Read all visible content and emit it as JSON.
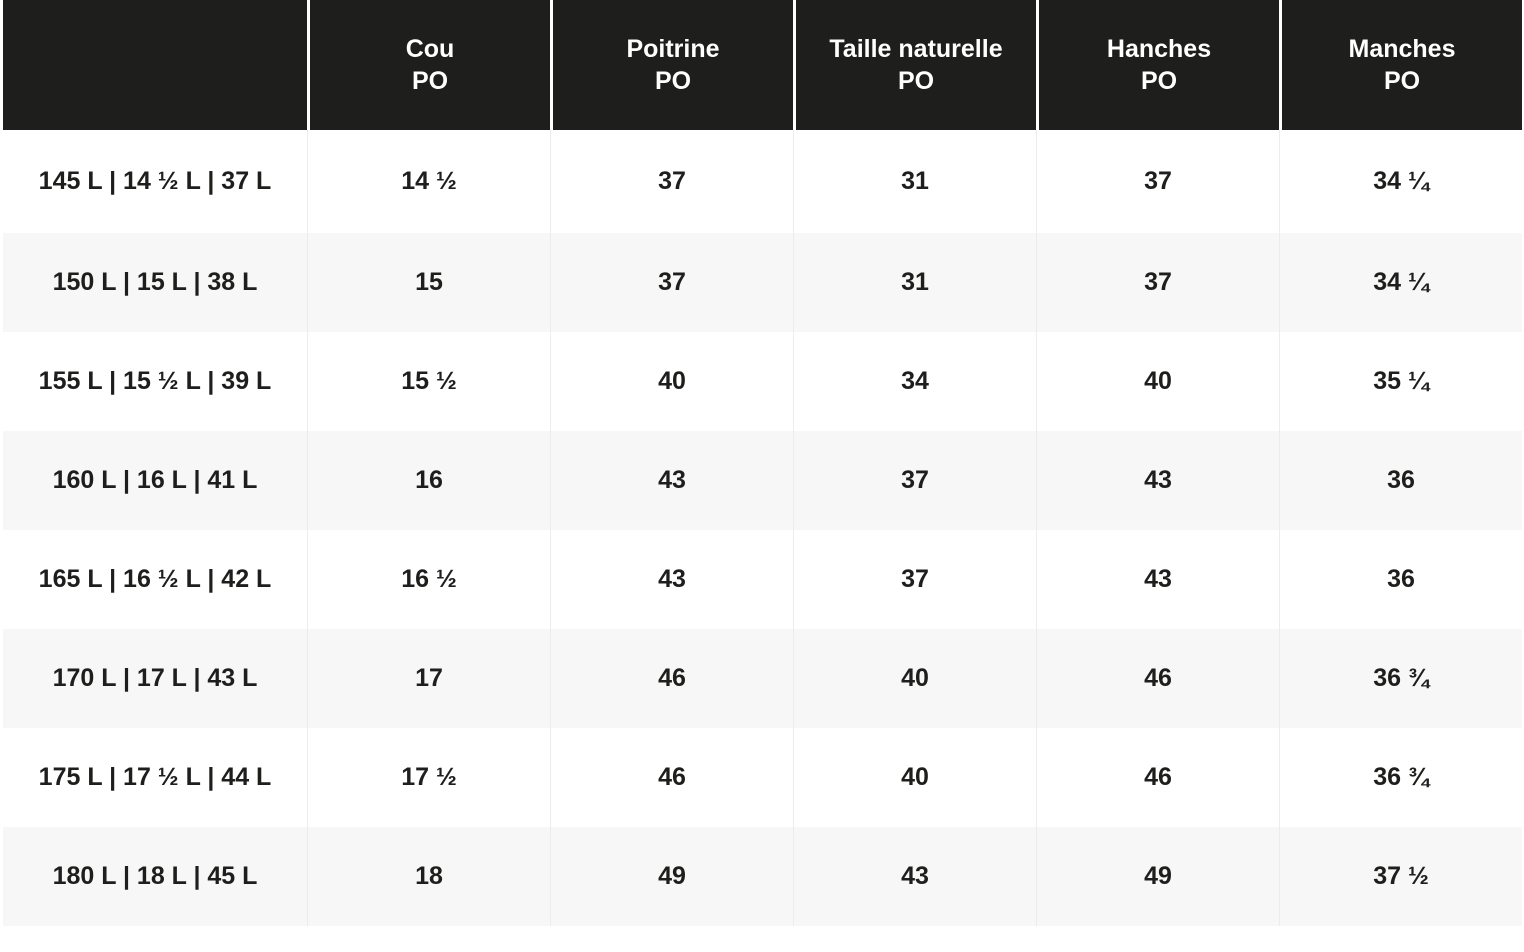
{
  "table": {
    "headers": [
      {
        "name": "",
        "unit": ""
      },
      {
        "name": "Cou",
        "unit": "PO"
      },
      {
        "name": "Poitrine",
        "unit": "PO"
      },
      {
        "name": "Taille naturelle",
        "unit": "PO"
      },
      {
        "name": "Hanches",
        "unit": "PO"
      },
      {
        "name": "Manches",
        "unit": "PO"
      }
    ],
    "rows": [
      [
        "145 L | 14 ½ L | 37 L",
        "14 ½",
        "37",
        "31",
        "37",
        "34 ¼"
      ],
      [
        "150 L | 15 L | 38 L",
        "15",
        "37",
        "31",
        "37",
        "34 ¼"
      ],
      [
        "155 L | 15 ½ L | 39 L",
        "15 ½",
        "40",
        "34",
        "40",
        "35 ¼"
      ],
      [
        "160 L | 16 L | 41 L",
        "16",
        "43",
        "37",
        "43",
        "36"
      ],
      [
        "165 L | 16 ½ L | 42 L",
        "16 ½",
        "43",
        "37",
        "43",
        "36"
      ],
      [
        "170 L | 17 L | 43 L",
        "17",
        "46",
        "40",
        "46",
        "36 ¾"
      ],
      [
        "175 L | 17 ½ L | 44 L",
        "17 ½",
        "46",
        "40",
        "46",
        "36 ¾"
      ],
      [
        "180 L | 18 L | 45 L",
        "18",
        "49",
        "43",
        "49",
        "37 ½"
      ]
    ]
  }
}
